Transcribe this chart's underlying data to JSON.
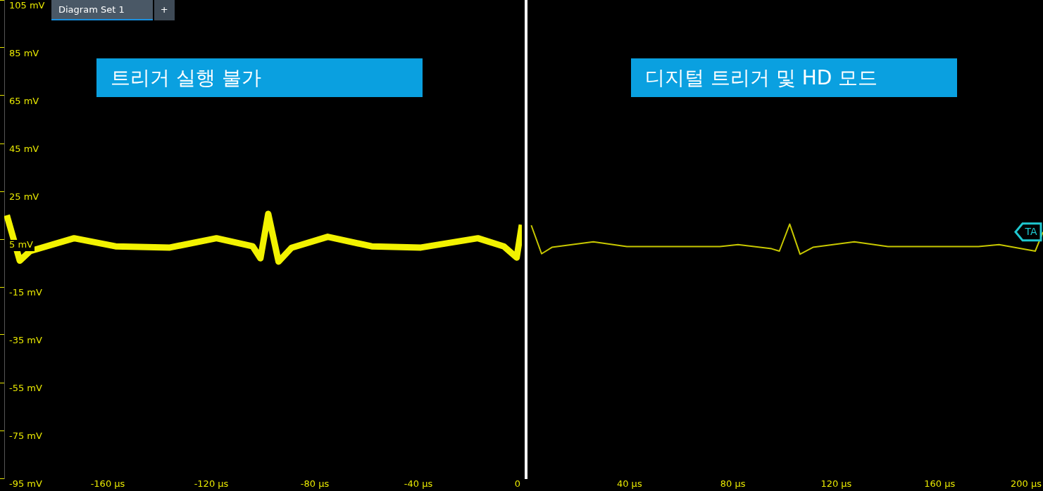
{
  "chart_data": [
    {
      "type": "line",
      "title": "트리거 실행 불가",
      "annotations": [
        "Diagram Set 1",
        "+"
      ],
      "xlim": [
        -200,
        0
      ],
      "xticks": [
        {
          "value": -160,
          "label": "-160 µs"
        },
        {
          "value": -120,
          "label": "-120 µs"
        },
        {
          "value": -80,
          "label": "-80 µs"
        },
        {
          "value": -40,
          "label": "-40 µs"
        },
        {
          "value": 0,
          "label": "0"
        }
      ],
      "ylim": [
        -95,
        105
      ],
      "yticks": [
        {
          "value": 105,
          "label": "105 mV"
        },
        {
          "value": 85,
          "label": "85 mV"
        },
        {
          "value": 65,
          "label": "65 mV"
        },
        {
          "value": 45,
          "label": "45 mV"
        },
        {
          "value": 25,
          "label": "25 mV"
        },
        {
          "value": 5,
          "label": "5 mV"
        },
        {
          "value": -15,
          "label": "-15 mV"
        },
        {
          "value": -35,
          "label": "-35 mV"
        },
        {
          "value": -55,
          "label": "-55 mV"
        },
        {
          "value": -75,
          "label": "-75 mV"
        },
        {
          "value": -95,
          "label": "-95 mV"
        }
      ],
      "legend": false,
      "marker": "none",
      "line_style": "solid",
      "series": [
        {
          "color": "#f2f200",
          "x": [
            -199,
            -194,
            -190,
            -173,
            -157,
            -136,
            -118,
            -104,
            -101,
            -98,
            -94,
            -89,
            -75,
            -58,
            -39,
            -17,
            -7,
            -2,
            0
          ],
          "values": [
            15,
            -4,
            0,
            5.4,
            2,
            1.5,
            5.4,
            2,
            -3,
            15.6,
            -4.4,
            1.4,
            6,
            2,
            1.5,
            5.4,
            2,
            -2.7,
            11
          ]
        }
      ]
    },
    {
      "type": "line",
      "title": "디지털 트리거 및 HD 모드",
      "annotations": [
        {
          "text": "TA",
          "x": 200,
          "y": 8
        }
      ],
      "xlim": [
        0,
        200
      ],
      "xticks": [
        {
          "value": 40,
          "label": "40 µs"
        },
        {
          "value": 80,
          "label": "80 µs"
        },
        {
          "value": 120,
          "label": "120 µs"
        },
        {
          "value": 160,
          "label": "160 µs"
        },
        {
          "value": 200,
          "label": "200 µs"
        }
      ],
      "ylim": [
        -95,
        105
      ],
      "tick_labels": "x",
      "legend": false,
      "marker": "none",
      "line_style": "solid",
      "series": [
        {
          "color": "#c8c800",
          "x": [
            2,
            6,
            10,
            26,
            39,
            75,
            82,
            95,
            98,
            102,
            106,
            111,
            127,
            140,
            175,
            183,
            197,
            200
          ],
          "values": [
            10.8,
            -1.1,
            1.6,
            3.9,
            1.9,
            1.9,
            2.7,
            1,
            0,
            11.3,
            -1.3,
            1.6,
            3.9,
            1.9,
            1.9,
            2.7,
            0,
            8
          ]
        }
      ]
    }
  ]
}
